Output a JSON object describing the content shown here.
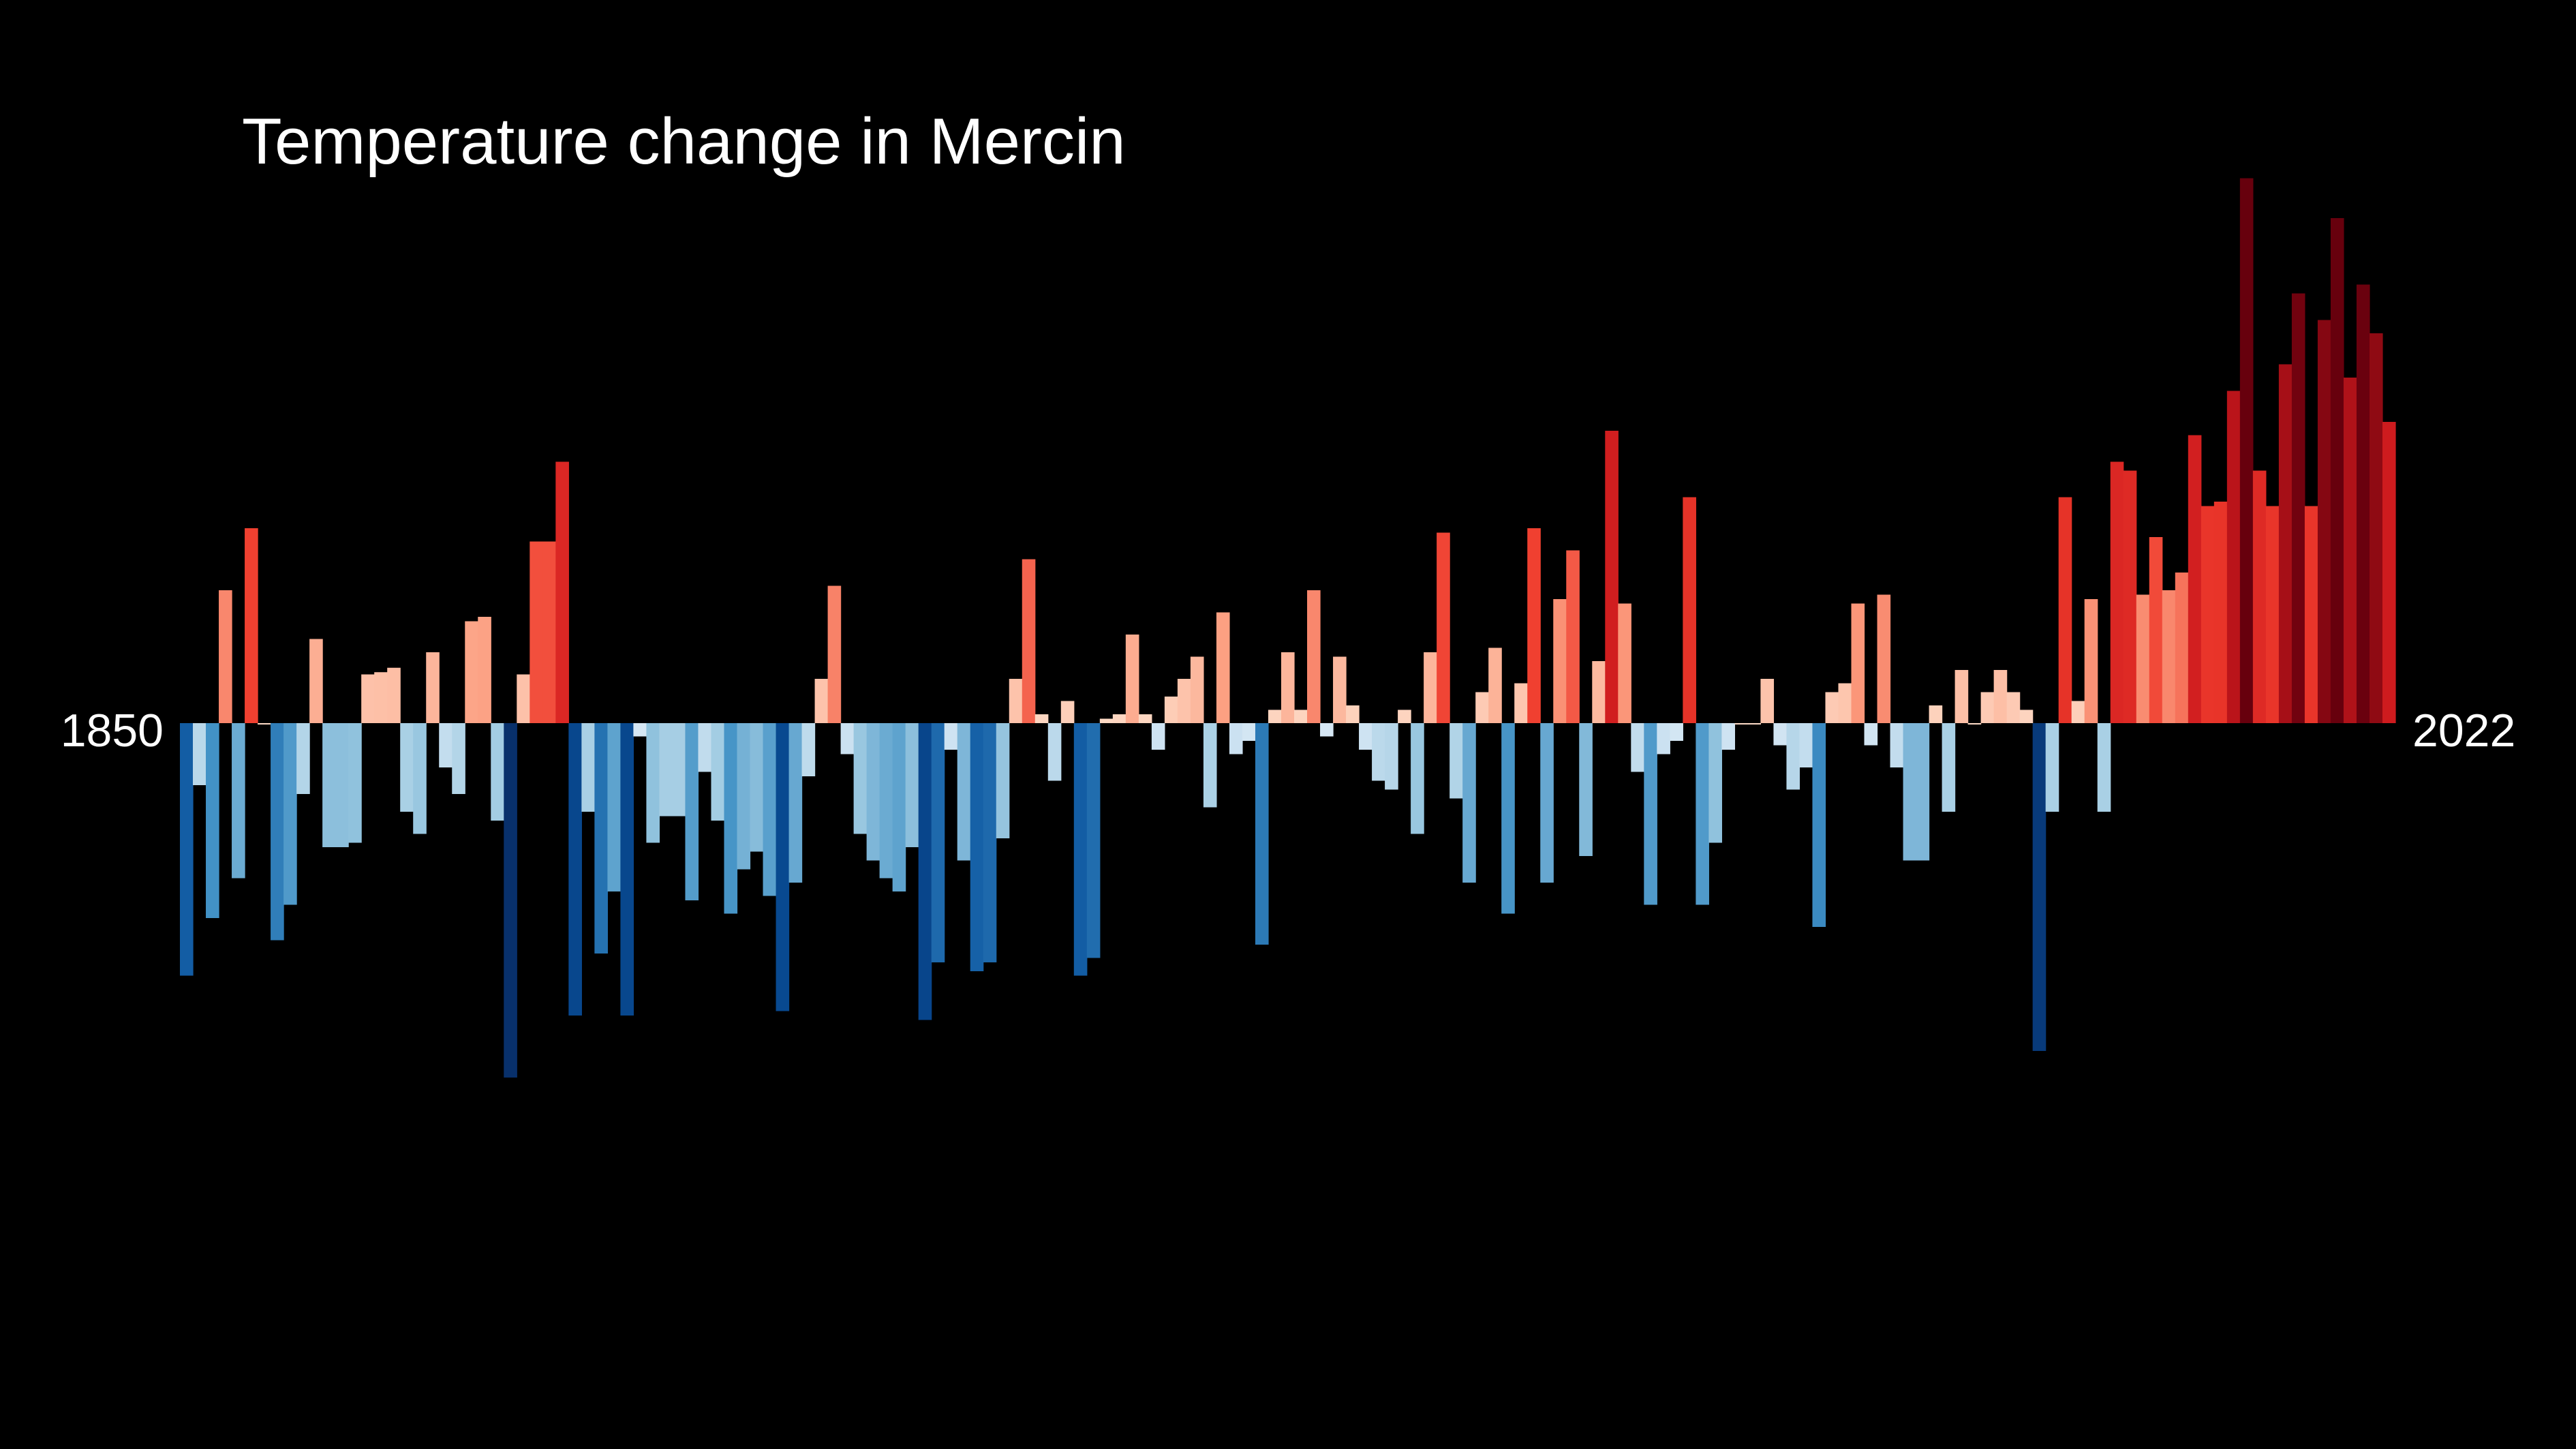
{
  "chart_data": {
    "type": "bar",
    "title": "Temperature change in Mercin",
    "start_label": "1850",
    "end_label": "2022",
    "xlabel": "",
    "ylabel": "",
    "x_start": 1850,
    "x_end": 2022,
    "ylim": [
      -1.0,
      1.25
    ],
    "grid": false,
    "legend": "none",
    "background": "#000000",
    "text_color": "#ffffff",
    "values": [
      -0.57,
      -0.14,
      -0.44,
      0.3,
      -0.35,
      0.44,
      0.0,
      -0.49,
      -0.41,
      -0.16,
      0.19,
      -0.28,
      -0.28,
      -0.27,
      0.11,
      0.115,
      0.125,
      -0.2,
      -0.25,
      0.16,
      -0.1,
      -0.16,
      0.23,
      0.24,
      -0.22,
      -0.8,
      0.11,
      0.41,
      0.41,
      0.59,
      -0.66,
      -0.2,
      -0.52,
      -0.38,
      -0.66,
      -0.03,
      -0.27,
      -0.21,
      -0.21,
      -0.4,
      -0.11,
      -0.22,
      -0.43,
      -0.33,
      -0.29,
      -0.39,
      -0.65,
      -0.36,
      -0.12,
      0.1,
      0.31,
      -0.07,
      -0.25,
      -0.31,
      -0.35,
      -0.38,
      -0.28,
      -0.67,
      -0.54,
      -0.06,
      -0.31,
      -0.56,
      -0.54,
      -0.26,
      0.1,
      0.37,
      0.02,
      -0.13,
      0.05,
      -0.57,
      -0.53,
      0.01,
      0.02,
      0.2,
      0.02,
      -0.06,
      0.06,
      0.1,
      0.15,
      -0.19,
      0.25,
      -0.07,
      -0.04,
      -0.5,
      0.03,
      0.16,
      0.03,
      0.3,
      -0.03,
      0.15,
      0.04,
      -0.06,
      -0.13,
      -0.15,
      0.03,
      -0.25,
      0.16,
      0.43,
      -0.17,
      -0.36,
      0.07,
      0.17,
      -0.43,
      0.09,
      0.44,
      -0.36,
      0.28,
      0.39,
      -0.3,
      0.14,
      0.66,
      0.27,
      -0.11,
      -0.41,
      -0.07,
      -0.04,
      0.51,
      -0.41,
      -0.27,
      -0.06,
      0.0,
      0.0,
      0.1,
      -0.05,
      -0.15,
      -0.1,
      -0.46,
      0.07,
      0.09,
      0.27,
      -0.05,
      0.29,
      -0.1,
      -0.31,
      -0.31,
      0.04,
      -0.2,
      0.12,
      0.0,
      0.07,
      0.12,
      0.07,
      0.03,
      -0.74,
      -0.2,
      0.51,
      0.05,
      0.28,
      -0.2,
      0.59,
      0.57,
      0.29,
      0.42,
      0.3,
      0.34,
      0.65,
      0.49,
      0.5,
      0.75,
      1.23,
      0.57,
      0.49,
      0.81,
      0.97,
      0.49,
      0.91,
      1.14,
      0.78,
      0.99,
      0.88,
      0.68
    ]
  }
}
